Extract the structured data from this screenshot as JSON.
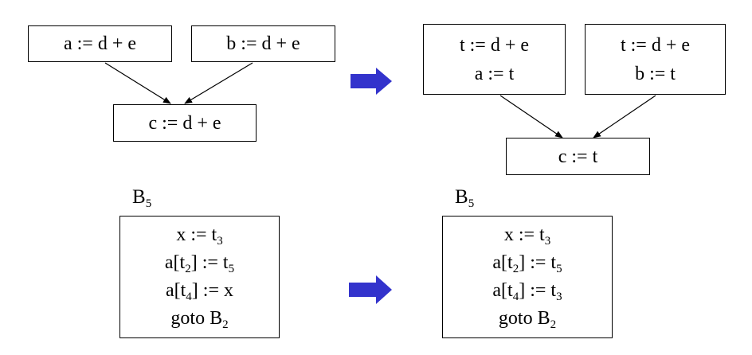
{
  "top": {
    "before": {
      "box_a": "a := d + e",
      "box_b": "b := d + e",
      "box_c": "c := d + e"
    },
    "after": {
      "box_left": [
        "t := d + e",
        "a := t"
      ],
      "box_right": [
        "t := d + e",
        "b := t"
      ],
      "box_c": "c := t"
    }
  },
  "bottom": {
    "before": {
      "block_label": {
        "text": "B",
        "sub": "5"
      },
      "lines": [
        {
          "pre": "x := t",
          "sub": "3",
          "post": ""
        },
        {
          "pre": "a[t",
          "sub": "2",
          "post": "] := t",
          "sub2": "5"
        },
        {
          "pre": "a[t",
          "sub": "4",
          "post": "] := x"
        },
        {
          "pre": "goto B",
          "sub": "2",
          "post": ""
        }
      ]
    },
    "after": {
      "block_label": {
        "text": "B",
        "sub": "5"
      },
      "lines": [
        {
          "pre": "x := t",
          "sub": "3",
          "post": ""
        },
        {
          "pre": "a[t",
          "sub": "2",
          "post": "] := t",
          "sub2": "5"
        },
        {
          "pre": "a[t",
          "sub": "4",
          "post": "] := t",
          "sub2": "3"
        },
        {
          "pre": "goto B",
          "sub": "2",
          "post": ""
        }
      ]
    }
  },
  "colors": {
    "transform_arrow": "#3333cc",
    "edge": "#000000"
  }
}
